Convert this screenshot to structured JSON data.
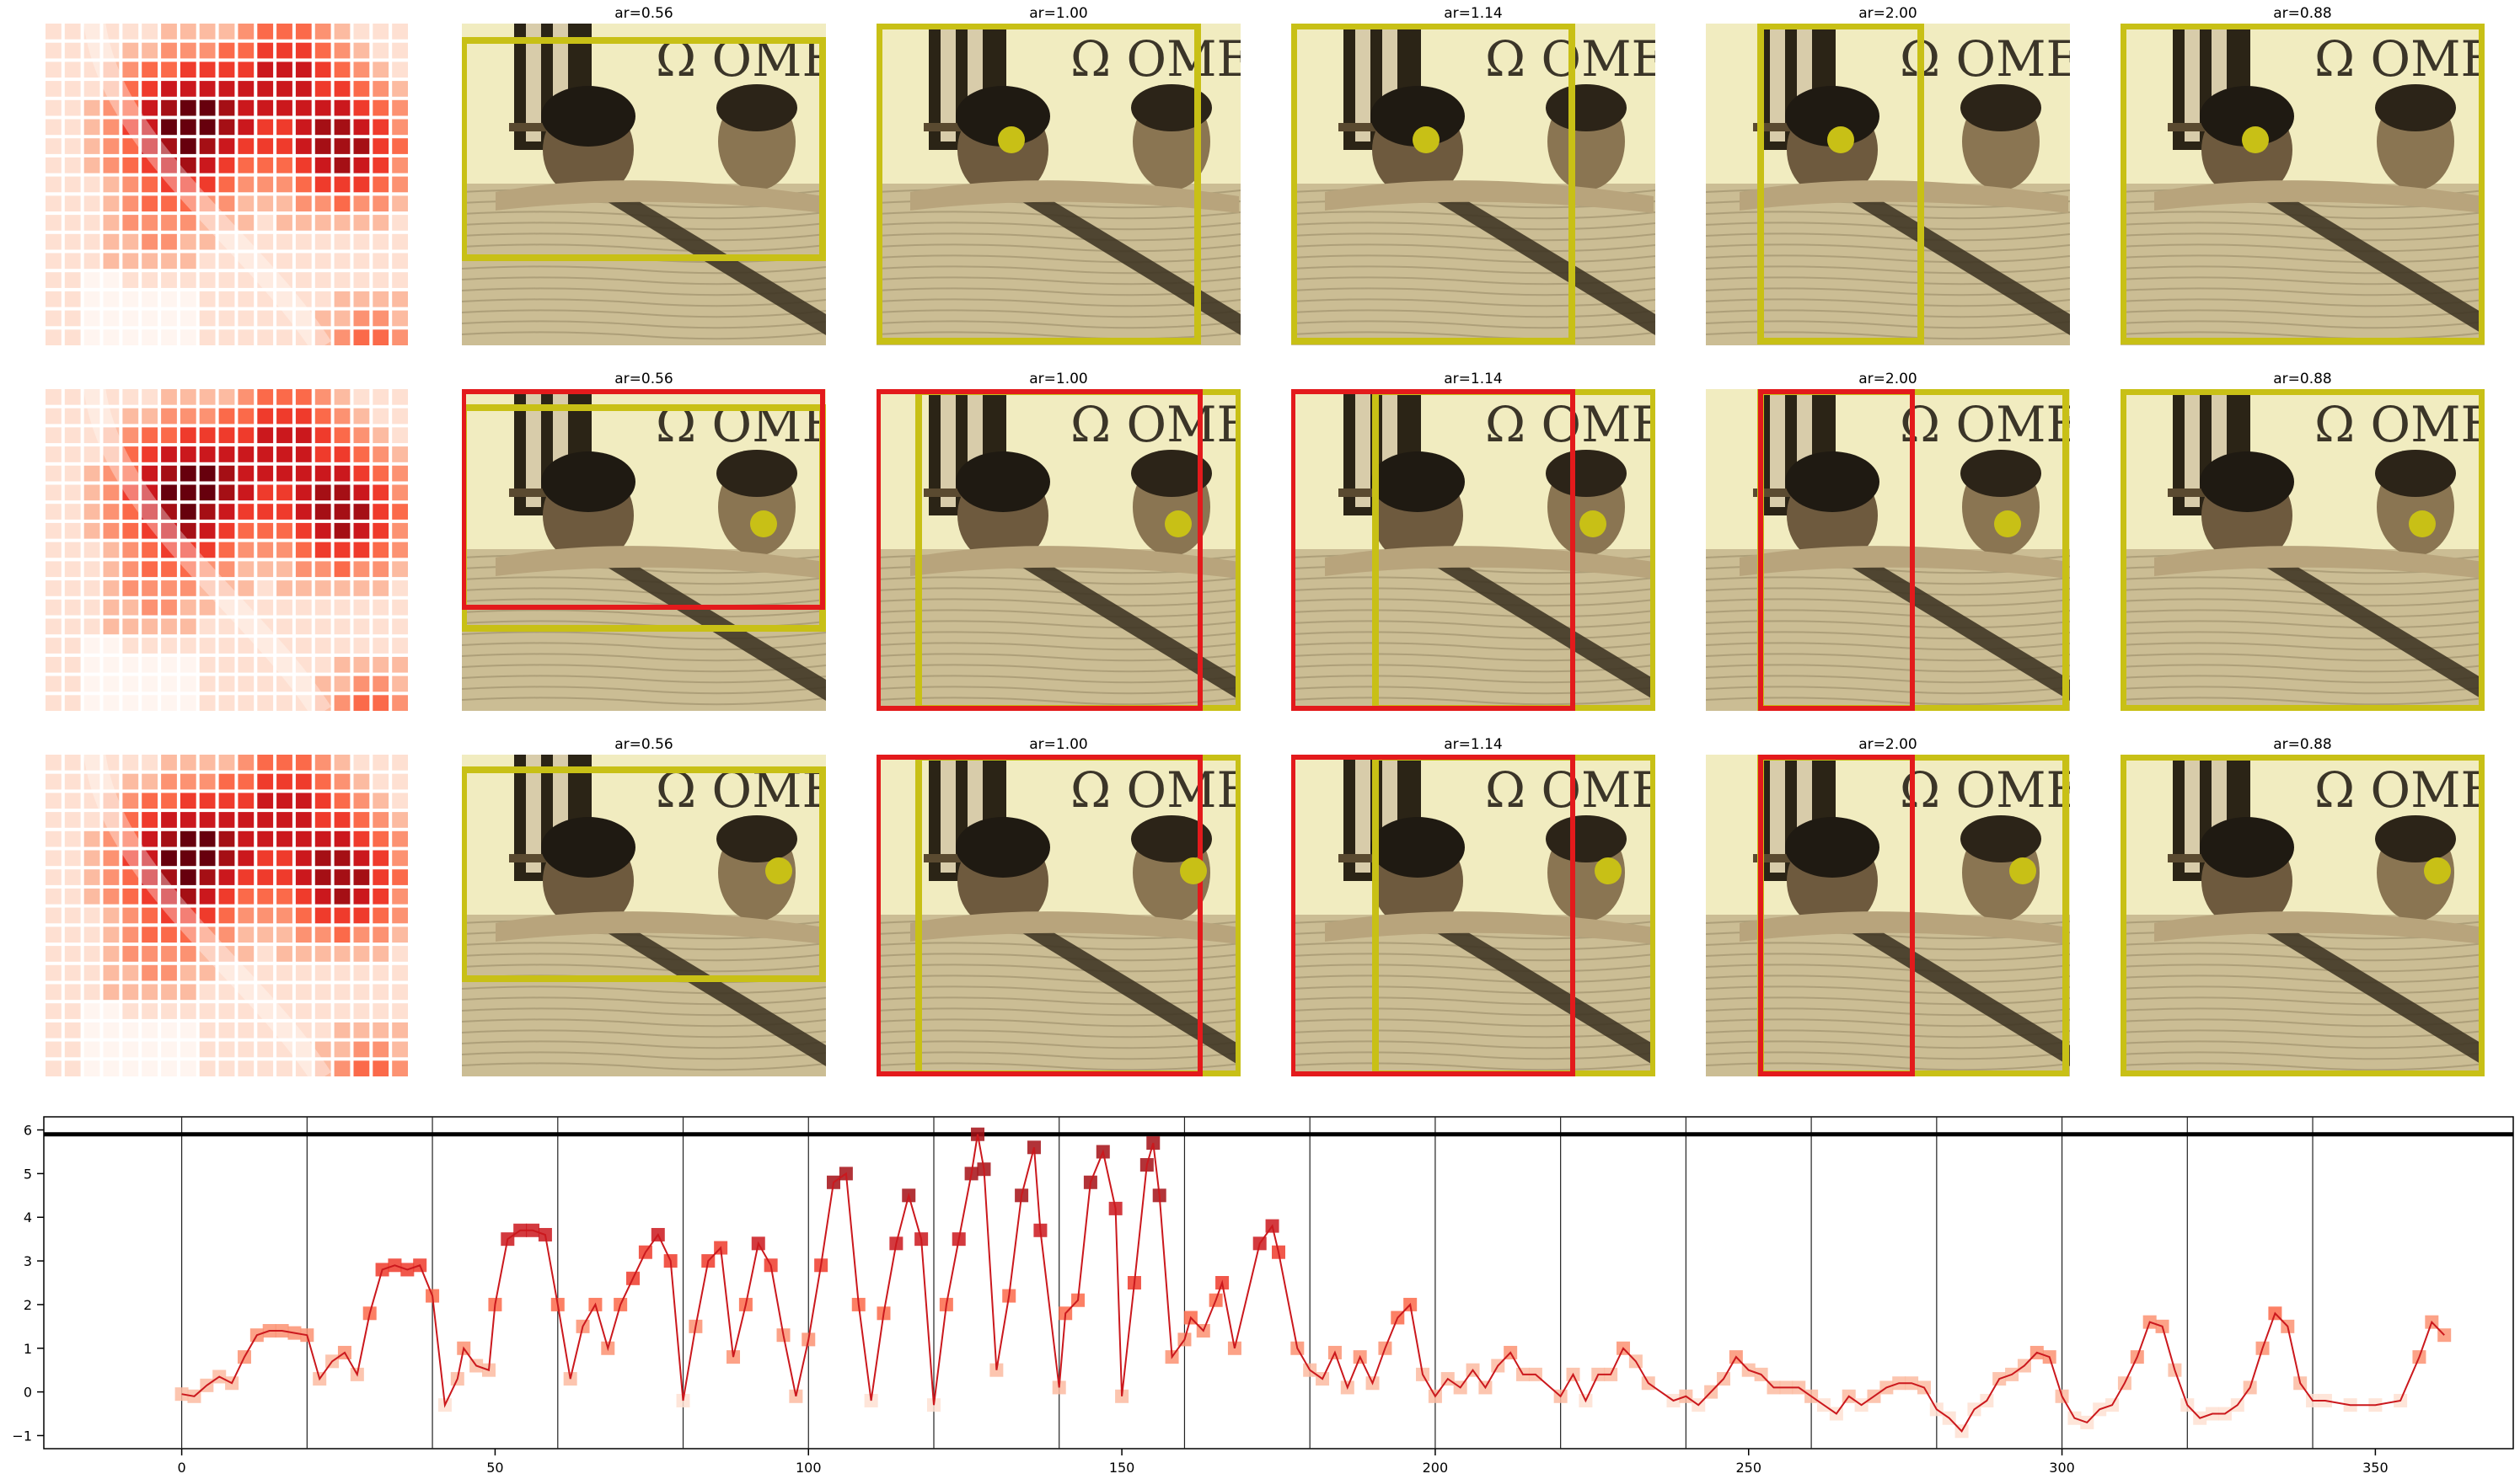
{
  "panel_titles": [
    "ar=0.56",
    "ar=1.00",
    "ar=1.14",
    "ar=2.00",
    "ar=0.88"
  ],
  "photo_text": "Ω OME",
  "colors": {
    "box_yellow": "#c8c016",
    "box_red": "#e31a1c",
    "line_red": "#cb181d",
    "photo_bg": "#f1ecc0",
    "threshold": "#000000"
  },
  "chart_data": {
    "type": "line",
    "series": [
      {
        "x_range": [
          0,
          361
        ],
        "marker": "square",
        "points": [
          [
            0,
            -0.05
          ],
          [
            2,
            -0.1
          ],
          [
            4,
            0.15
          ],
          [
            6,
            0.35
          ],
          [
            8,
            0.2
          ],
          [
            10,
            0.8
          ],
          [
            12,
            1.3
          ],
          [
            14,
            1.4
          ],
          [
            16,
            1.4
          ],
          [
            18,
            1.35
          ],
          [
            20,
            1.3
          ],
          [
            22,
            0.3
          ],
          [
            24,
            0.7
          ],
          [
            26,
            0.9
          ],
          [
            28,
            0.4
          ],
          [
            30,
            1.8
          ],
          [
            32,
            2.8
          ],
          [
            34,
            2.9
          ],
          [
            36,
            2.8
          ],
          [
            38,
            2.9
          ],
          [
            40,
            2.2
          ],
          [
            42,
            -0.3
          ],
          [
            44,
            0.3
          ],
          [
            45,
            1.0
          ],
          [
            47,
            0.6
          ],
          [
            49,
            0.5
          ],
          [
            50,
            2.0
          ],
          [
            52,
            3.5
          ],
          [
            54,
            3.7
          ],
          [
            56,
            3.7
          ],
          [
            58,
            3.6
          ],
          [
            60,
            2.0
          ],
          [
            62,
            0.3
          ],
          [
            64,
            1.5
          ],
          [
            66,
            2.0
          ],
          [
            68,
            1.0
          ],
          [
            70,
            2.0
          ],
          [
            72,
            2.6
          ],
          [
            74,
            3.2
          ],
          [
            76,
            3.6
          ],
          [
            78,
            3.0
          ],
          [
            80,
            -0.2
          ],
          [
            82,
            1.5
          ],
          [
            84,
            3.0
          ],
          [
            86,
            3.3
          ],
          [
            88,
            0.8
          ],
          [
            90,
            2.0
          ],
          [
            92,
            3.4
          ],
          [
            94,
            2.9
          ],
          [
            96,
            1.3
          ],
          [
            98,
            -0.1
          ],
          [
            100,
            1.2
          ],
          [
            102,
            2.9
          ],
          [
            104,
            4.8
          ],
          [
            106,
            5.0
          ],
          [
            108,
            2.0
          ],
          [
            110,
            -0.2
          ],
          [
            112,
            1.8
          ],
          [
            114,
            3.4
          ],
          [
            116,
            4.5
          ],
          [
            118,
            3.5
          ],
          [
            120,
            -0.3
          ],
          [
            122,
            2.0
          ],
          [
            124,
            3.5
          ],
          [
            126,
            5.0
          ],
          [
            127,
            5.9
          ],
          [
            128,
            5.1
          ],
          [
            130,
            0.5
          ],
          [
            132,
            2.2
          ],
          [
            134,
            4.5
          ],
          [
            136,
            5.6
          ],
          [
            137,
            3.7
          ],
          [
            140,
            0.1
          ],
          [
            141,
            1.8
          ],
          [
            143,
            2.1
          ],
          [
            145,
            4.8
          ],
          [
            147,
            5.5
          ],
          [
            149,
            4.2
          ],
          [
            150,
            -0.1
          ],
          [
            152,
            2.5
          ],
          [
            154,
            5.2
          ],
          [
            155,
            5.7
          ],
          [
            156,
            4.5
          ],
          [
            158,
            0.8
          ],
          [
            160,
            1.2
          ],
          [
            161,
            1.7
          ],
          [
            163,
            1.4
          ],
          [
            165,
            2.1
          ],
          [
            166,
            2.5
          ],
          [
            168,
            1.0
          ],
          [
            172,
            3.4
          ],
          [
            174,
            3.8
          ],
          [
            175,
            3.2
          ],
          [
            178,
            1.0
          ],
          [
            180,
            0.5
          ],
          [
            182,
            0.3
          ],
          [
            184,
            0.9
          ],
          [
            186,
            0.1
          ],
          [
            188,
            0.8
          ],
          [
            190,
            0.2
          ],
          [
            192,
            1.0
          ],
          [
            194,
            1.7
          ],
          [
            196,
            2.0
          ],
          [
            198,
            0.4
          ],
          [
            200,
            -0.1
          ],
          [
            202,
            0.3
          ],
          [
            204,
            0.1
          ],
          [
            206,
            0.5
          ],
          [
            208,
            0.1
          ],
          [
            210,
            0.6
          ],
          [
            212,
            0.9
          ],
          [
            214,
            0.4
          ],
          [
            216,
            0.4
          ],
          [
            220,
            -0.1
          ],
          [
            222,
            0.4
          ],
          [
            224,
            -0.2
          ],
          [
            226,
            0.4
          ],
          [
            228,
            0.4
          ],
          [
            230,
            1.0
          ],
          [
            232,
            0.7
          ],
          [
            234,
            0.2
          ],
          [
            238,
            -0.2
          ],
          [
            240,
            -0.1
          ],
          [
            242,
            -0.3
          ],
          [
            244,
            0.0
          ],
          [
            246,
            0.3
          ],
          [
            248,
            0.8
          ],
          [
            250,
            0.5
          ],
          [
            252,
            0.4
          ],
          [
            254,
            0.1
          ],
          [
            256,
            0.1
          ],
          [
            258,
            0.1
          ],
          [
            260,
            -0.1
          ],
          [
            262,
            -0.3
          ],
          [
            264,
            -0.5
          ],
          [
            266,
            -0.1
          ],
          [
            268,
            -0.3
          ],
          [
            270,
            -0.1
          ],
          [
            272,
            0.1
          ],
          [
            274,
            0.2
          ],
          [
            276,
            0.2
          ],
          [
            278,
            0.1
          ],
          [
            280,
            -0.4
          ],
          [
            282,
            -0.6
          ],
          [
            284,
            -0.9
          ],
          [
            286,
            -0.4
          ],
          [
            288,
            -0.2
          ],
          [
            290,
            0.3
          ],
          [
            292,
            0.4
          ],
          [
            294,
            0.6
          ],
          [
            296,
            0.9
          ],
          [
            298,
            0.8
          ],
          [
            300,
            -0.1
          ],
          [
            302,
            -0.6
          ],
          [
            304,
            -0.7
          ],
          [
            306,
            -0.4
          ],
          [
            308,
            -0.3
          ],
          [
            310,
            0.2
          ],
          [
            312,
            0.8
          ],
          [
            314,
            1.6
          ],
          [
            316,
            1.5
          ],
          [
            318,
            0.5
          ],
          [
            320,
            -0.3
          ],
          [
            322,
            -0.6
          ],
          [
            324,
            -0.5
          ],
          [
            326,
            -0.5
          ],
          [
            328,
            -0.3
          ],
          [
            330,
            0.1
          ],
          [
            332,
            1.0
          ],
          [
            334,
            1.8
          ],
          [
            336,
            1.5
          ],
          [
            338,
            0.2
          ],
          [
            340,
            -0.2
          ],
          [
            342,
            -0.2
          ],
          [
            346,
            -0.3
          ],
          [
            350,
            -0.3
          ],
          [
            354,
            -0.2
          ],
          [
            357,
            0.8
          ],
          [
            359,
            1.6
          ],
          [
            361,
            1.3
          ]
        ]
      }
    ],
    "threshold": 5.9,
    "segment_boundaries": [
      0,
      20,
      40,
      60,
      80,
      100,
      120,
      140,
      160,
      180,
      200,
      220,
      240,
      260,
      280,
      300,
      320,
      340
    ],
    "xlim": [
      -22,
      372
    ],
    "ylim": [
      -1.3,
      6.3
    ],
    "xticks": [
      0,
      50,
      100,
      150,
      200,
      250,
      300,
      350
    ],
    "yticks": [
      -1,
      0,
      1,
      2,
      3,
      4,
      5,
      6
    ],
    "grid": false,
    "title": "",
    "xlabel": "",
    "ylabel": ""
  }
}
